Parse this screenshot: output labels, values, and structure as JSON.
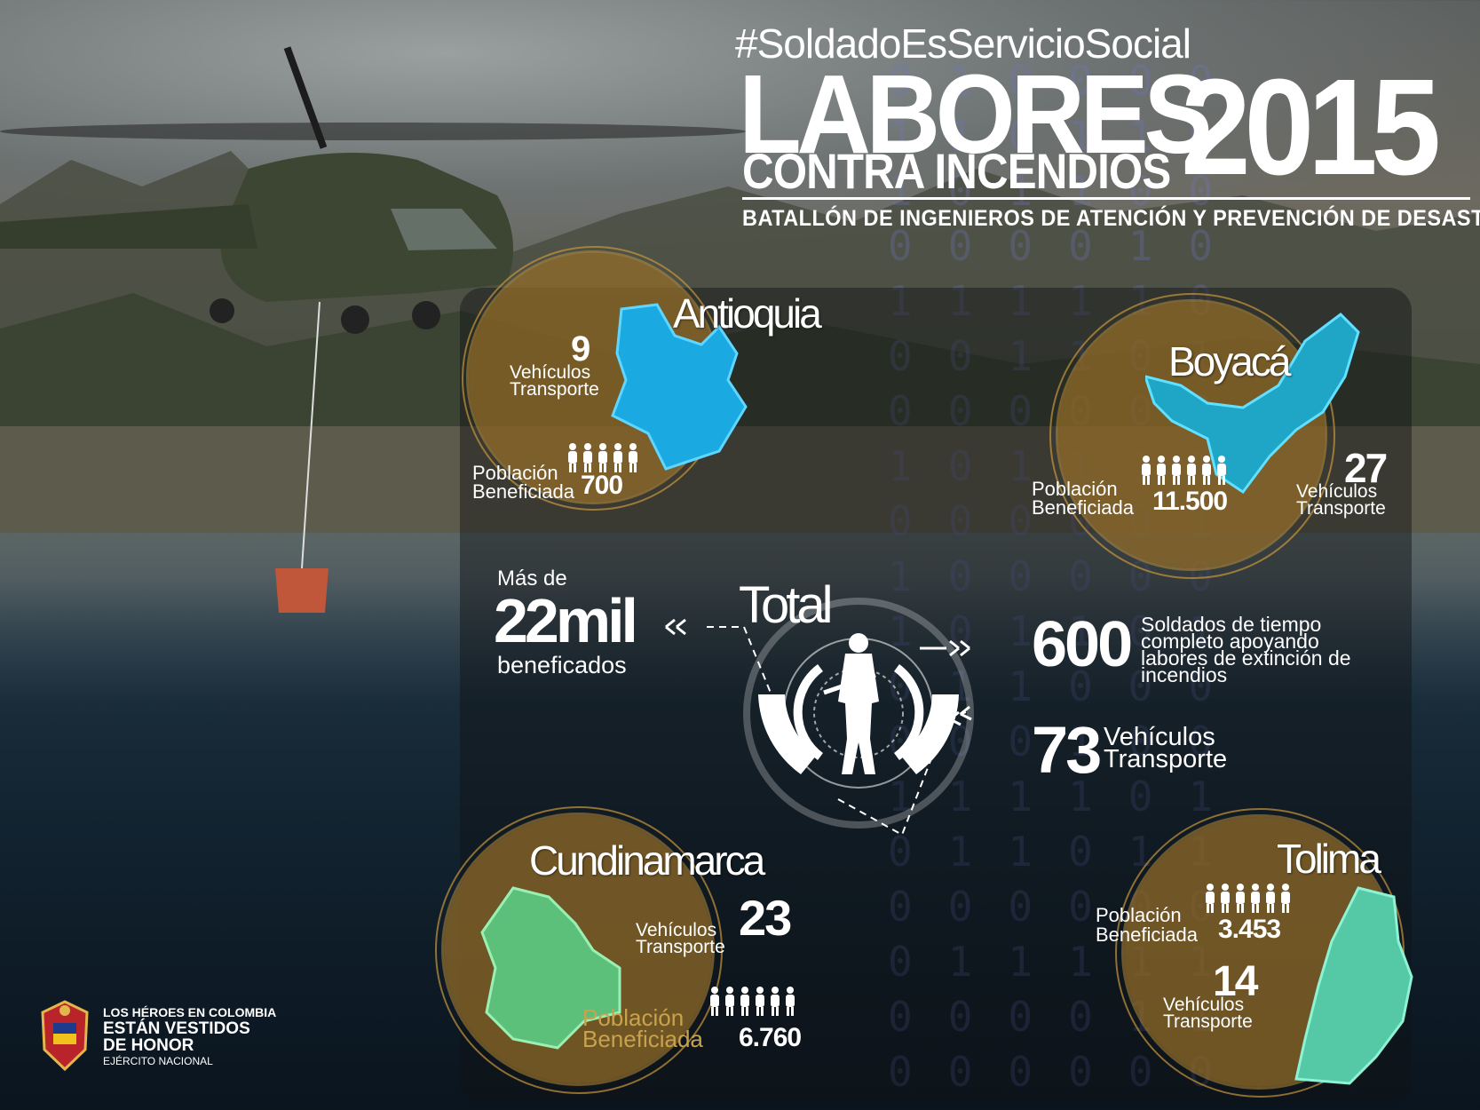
{
  "header": {
    "hashtag": "#SoldadoEsServicioSocial",
    "title_line1": "LABORES",
    "title_line2": "CONTRA INCENDIOS",
    "year": "2015",
    "subtitle": "BATALLÓN DE INGENIEROS DE ATENCIÓN Y PREVENCIÓN DE DESASTRES"
  },
  "regions": {
    "antioquia": {
      "name": "Antioquia",
      "vehicles": "9",
      "vehicles_label_1": "Vehículos",
      "vehicles_label_2": "Transporte",
      "pop_label_1": "Población",
      "pop_label_2": "Beneficiada",
      "population": "700"
    },
    "boyaca": {
      "name": "Boyacá",
      "vehicles": "27",
      "vehicles_label_1": "Vehículos",
      "vehicles_label_2": "Transporte",
      "pop_label_1": "Población",
      "pop_label_2": "Beneficiada",
      "population": "11.500"
    },
    "cundinamarca": {
      "name": "Cundinamarca",
      "vehicles": "23",
      "vehicles_label_1": "Vehículos",
      "vehicles_label_2": "Transporte",
      "pop_label_1": "Población",
      "pop_label_2": "Beneficiada",
      "population": "6.760"
    },
    "tolima": {
      "name": "Tolima",
      "vehicles": "14",
      "vehicles_label_1": "Vehículos",
      "vehicles_label_2": "Transporte",
      "pop_label_1": "Población",
      "pop_label_2": "Beneficiada",
      "population": "3.453"
    }
  },
  "total": {
    "title": "Total",
    "beneficiaries_prefix": "Más de",
    "beneficiaries_value": "22mil",
    "beneficiaries_suffix": "beneficados",
    "soldiers_value": "600",
    "soldiers_text": "Soldados de tiempo completo apoyando labores de extinción de incendios",
    "vehicles_value": "73",
    "vehicles_label_1": "Vehículos",
    "vehicles_label_2": "Transporte"
  },
  "footer": {
    "line1": "LOS HÉROES EN COLOMBIA",
    "line2": "ESTÁN VESTIDOS",
    "line3": "DE HONOR",
    "line4": "EJÉRCITO NACIONAL"
  },
  "colors": {
    "antioquia_map": "#1aa9e0",
    "boyaca_map": "#1fa6c6",
    "cundinamarca_map": "#5cc07a",
    "tolima_map": "#55c9a6",
    "circle_fill": "#96702a"
  },
  "background_binary": "0 1 0 1 1 0 0 1 0 0 1 1 0 0 1 0 1 0 0 1 1 0 0 1 0 1 0 0 1 0"
}
